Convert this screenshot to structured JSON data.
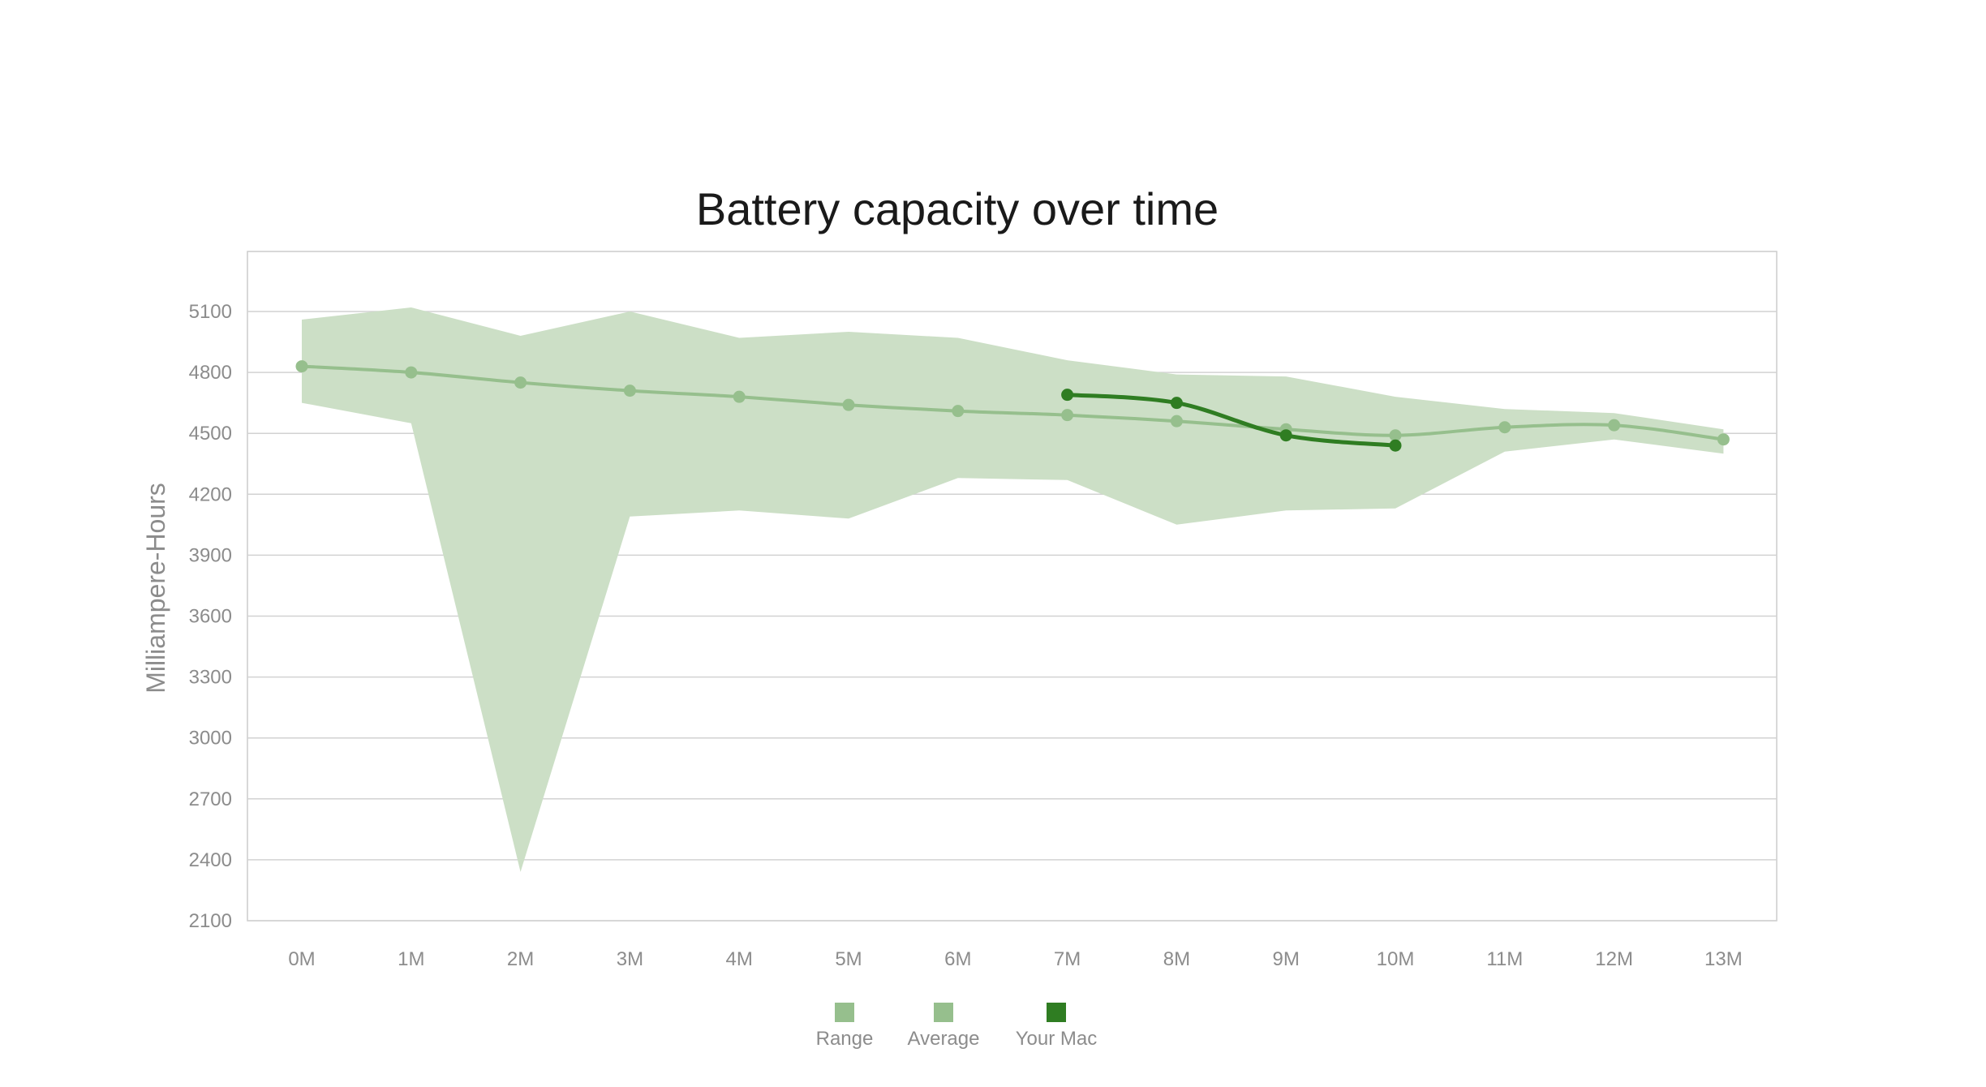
{
  "chart_data": {
    "type": "line",
    "title": "Battery capacity over time",
    "xlabel": "",
    "ylabel": "Milliampere-Hours",
    "categories": [
      "0M",
      "1M",
      "2M",
      "3M",
      "4M",
      "5M",
      "6M",
      "7M",
      "8M",
      "9M",
      "10M",
      "11M",
      "12M",
      "13M"
    ],
    "yticks": [
      2100,
      2400,
      2700,
      3000,
      3300,
      3600,
      3900,
      4200,
      4500,
      4800,
      5100
    ],
    "ylim": [
      2100,
      5400
    ],
    "grid": true,
    "legend_position": "bottom",
    "series": [
      {
        "name": "Range",
        "kind": "band",
        "upper": [
          5060,
          5120,
          4980,
          5100,
          4970,
          5000,
          4970,
          4860,
          4790,
          4780,
          4680,
          4620,
          4600,
          4520
        ],
        "lower": [
          4650,
          4550,
          2340,
          4090,
          4120,
          4080,
          4280,
          4270,
          4050,
          4120,
          4130,
          4410,
          4470,
          4400
        ]
      },
      {
        "name": "Average",
        "kind": "line",
        "values": [
          4830,
          4800,
          4750,
          4710,
          4680,
          4640,
          4610,
          4590,
          4560,
          4520,
          4490,
          4530,
          4540,
          4470
        ]
      },
      {
        "name": "Your Mac",
        "kind": "line",
        "x": [
          "7M",
          "8M",
          "9M",
          "10M"
        ],
        "values": [
          4690,
          4650,
          4490,
          4440
        ]
      }
    ],
    "colors": {
      "range": "#ccdfc6",
      "average": "#96bf8d",
      "your_mac": "#2f7d22",
      "grid": "#d2d2d2",
      "frame": "#cccccc"
    }
  }
}
